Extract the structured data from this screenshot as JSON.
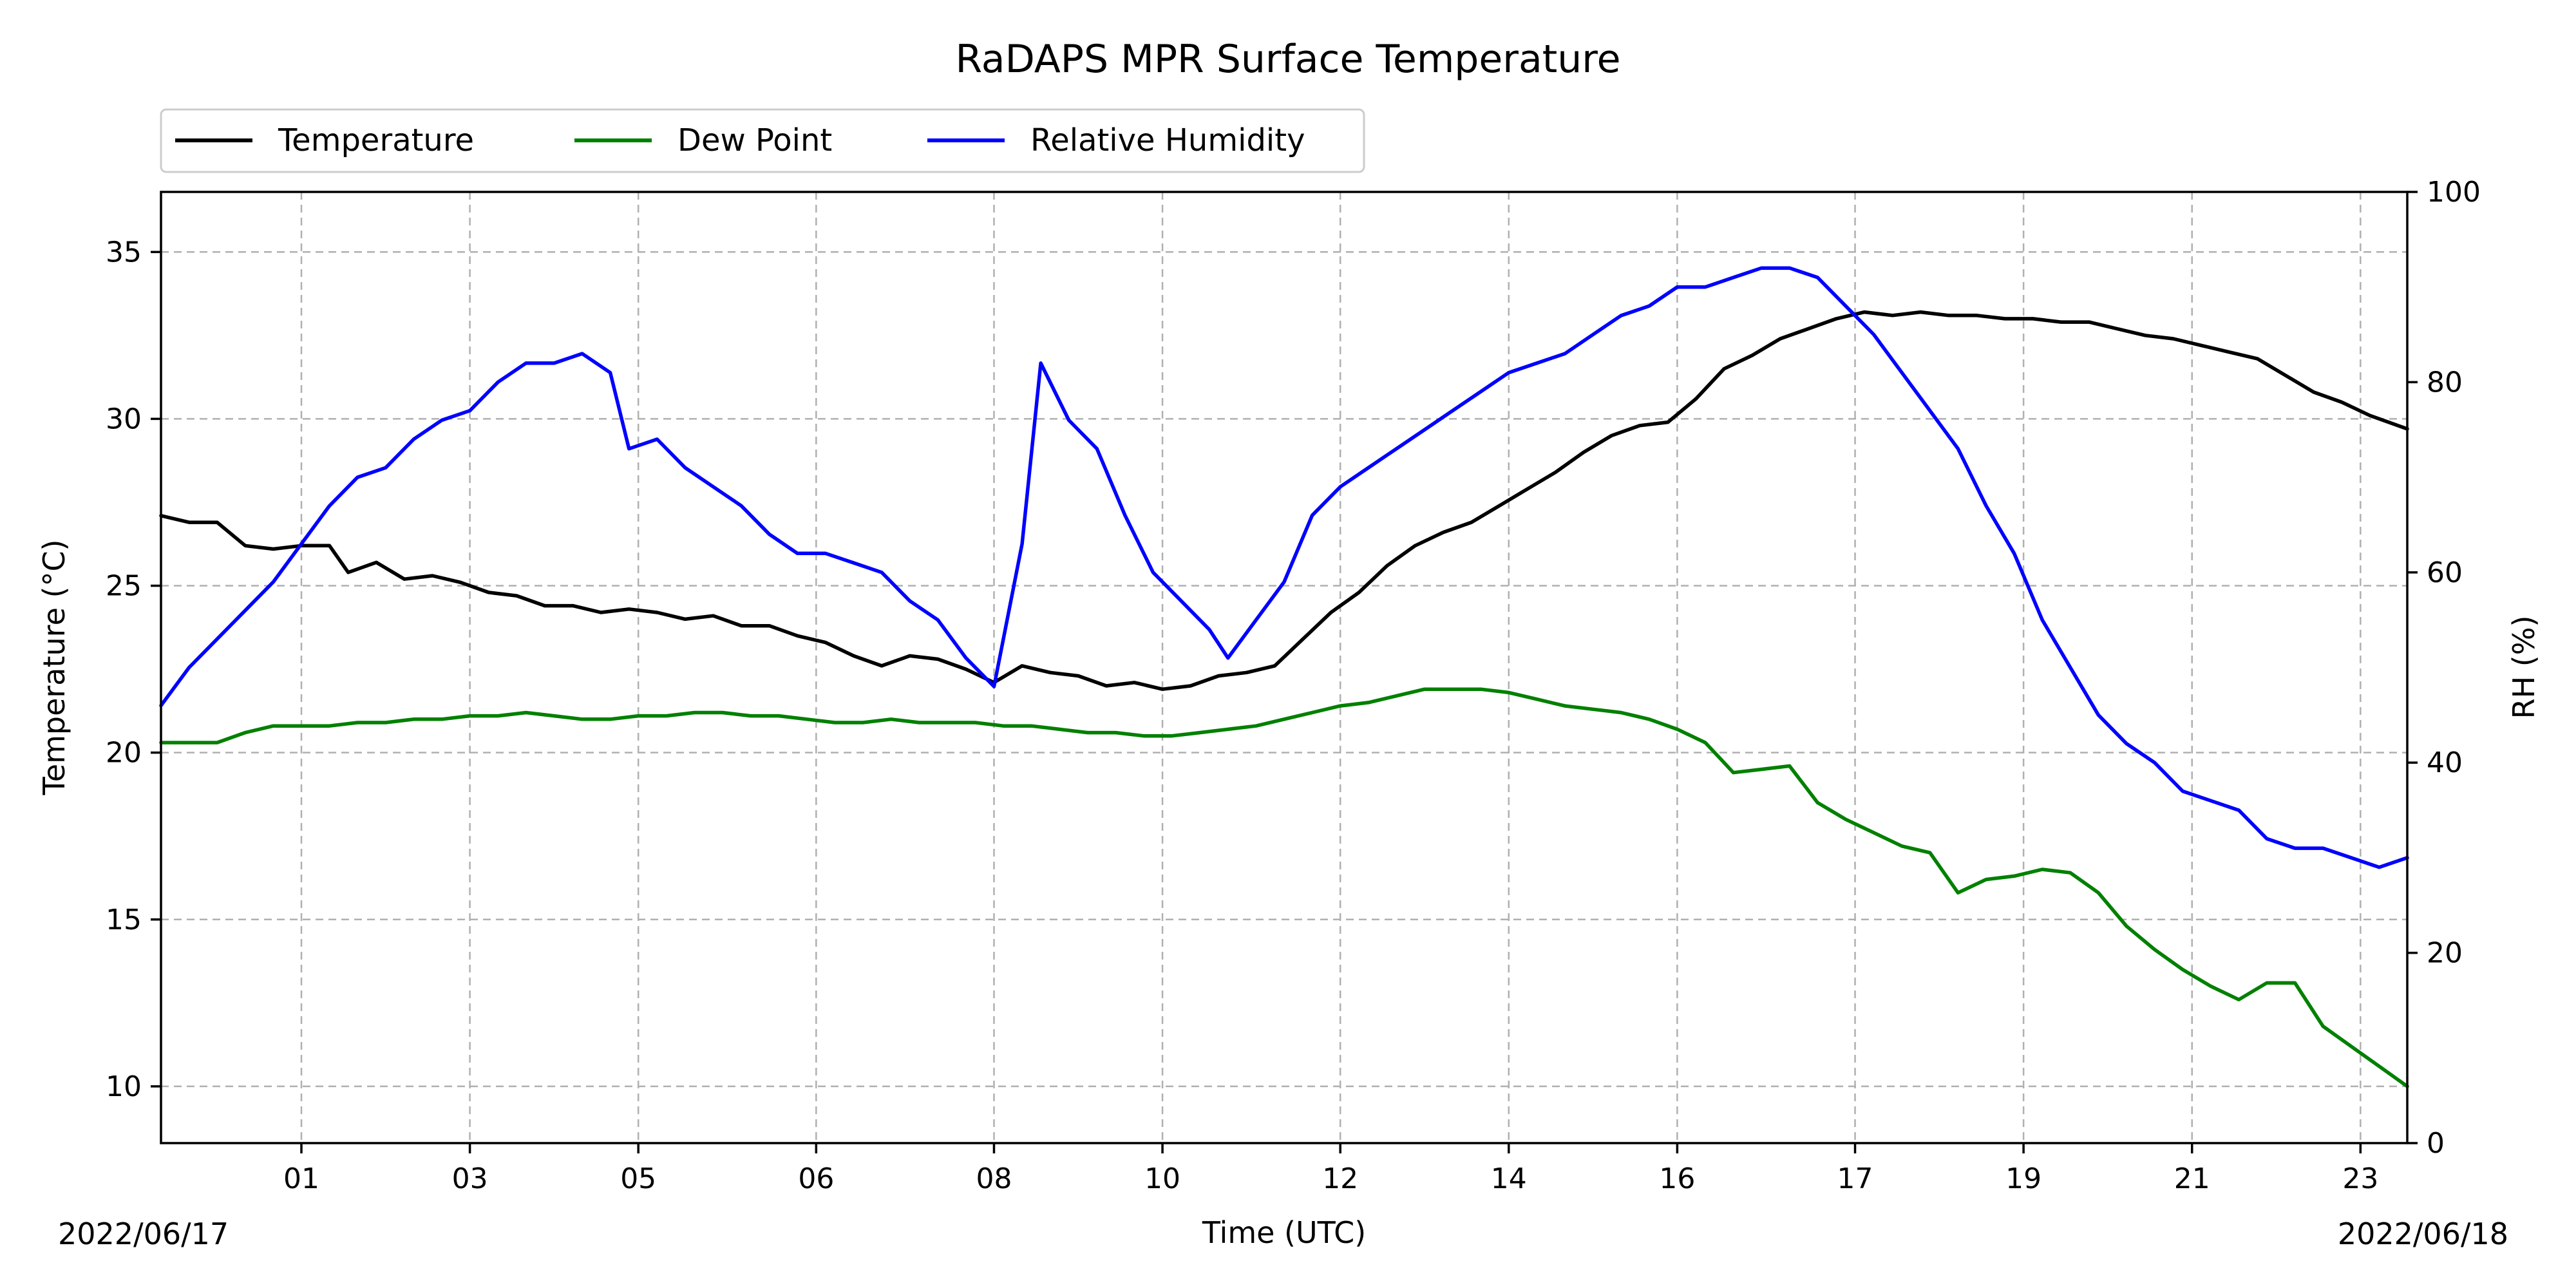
{
  "chart_data": {
    "type": "line",
    "title": "RaDAPS MPR Surface Temperature",
    "xlabel": "Time (UTC)",
    "ylabel_left": "Temperature ($^\\circ$C)",
    "ylabel_left_display": "Temperature (°C)",
    "ylabel_right": "RH (%)",
    "start_date_label": "2022/06/17",
    "end_date_label": "2022/06/18",
    "x_range_hours": [
      0,
      24
    ],
    "ylim_left": [
      8.3,
      36.8
    ],
    "ylim_right": [
      0,
      100
    ],
    "grid": true,
    "legend_position": "top-left, above plot",
    "x_ticks": [
      {
        "hour": 1.5,
        "label": "01"
      },
      {
        "hour": 3.3,
        "label": "03"
      },
      {
        "hour": 5.1,
        "label": "05"
      },
      {
        "hour": 7.0,
        "label": "06"
      },
      {
        "hour": 8.9,
        "label": "08"
      },
      {
        "hour": 10.7,
        "label": "10"
      },
      {
        "hour": 12.6,
        "label": "12"
      },
      {
        "hour": 14.4,
        "label": "14"
      },
      {
        "hour": 16.2,
        "label": "16"
      },
      {
        "hour": 18.1,
        "label": "17"
      },
      {
        "hour": 19.9,
        "label": "19"
      },
      {
        "hour": 21.7,
        "label": "21"
      },
      {
        "hour": 23.5,
        "label": "23"
      }
    ],
    "y_ticks_left": [
      10,
      15,
      20,
      25,
      30,
      35
    ],
    "y_ticks_right": [
      0,
      20,
      40,
      60,
      80,
      100
    ],
    "series": [
      {
        "name": "Temperature",
        "color": "#000000",
        "axis": "left",
        "points": [
          [
            0.0,
            27.1
          ],
          [
            0.3,
            26.9
          ],
          [
            0.6,
            26.9
          ],
          [
            0.9,
            26.2
          ],
          [
            1.2,
            26.1
          ],
          [
            1.5,
            26.2
          ],
          [
            1.8,
            26.2
          ],
          [
            2.0,
            25.4
          ],
          [
            2.3,
            25.7
          ],
          [
            2.6,
            25.2
          ],
          [
            2.9,
            25.3
          ],
          [
            3.2,
            25.1
          ],
          [
            3.5,
            24.8
          ],
          [
            3.8,
            24.7
          ],
          [
            4.1,
            24.4
          ],
          [
            4.4,
            24.4
          ],
          [
            4.7,
            24.2
          ],
          [
            5.0,
            24.3
          ],
          [
            5.3,
            24.2
          ],
          [
            5.6,
            24.0
          ],
          [
            5.9,
            24.1
          ],
          [
            6.2,
            23.8
          ],
          [
            6.5,
            23.8
          ],
          [
            6.8,
            23.5
          ],
          [
            7.1,
            23.3
          ],
          [
            7.4,
            22.9
          ],
          [
            7.7,
            22.6
          ],
          [
            8.0,
            22.9
          ],
          [
            8.3,
            22.8
          ],
          [
            8.6,
            22.5
          ],
          [
            8.9,
            22.1
          ],
          [
            9.2,
            22.6
          ],
          [
            9.5,
            22.4
          ],
          [
            9.8,
            22.3
          ],
          [
            10.1,
            22.0
          ],
          [
            10.4,
            22.1
          ],
          [
            10.7,
            21.9
          ],
          [
            11.0,
            22.0
          ],
          [
            11.3,
            22.3
          ],
          [
            11.6,
            22.4
          ],
          [
            11.9,
            22.6
          ],
          [
            12.2,
            23.4
          ],
          [
            12.5,
            24.2
          ],
          [
            12.8,
            24.8
          ],
          [
            13.1,
            25.6
          ],
          [
            13.4,
            26.2
          ],
          [
            13.7,
            26.6
          ],
          [
            14.0,
            26.9
          ],
          [
            14.3,
            27.4
          ],
          [
            14.6,
            27.9
          ],
          [
            14.9,
            28.4
          ],
          [
            15.2,
            29.0
          ],
          [
            15.5,
            29.5
          ],
          [
            15.8,
            29.8
          ],
          [
            16.1,
            29.9
          ],
          [
            16.4,
            30.6
          ],
          [
            16.7,
            31.5
          ],
          [
            17.0,
            31.9
          ],
          [
            17.3,
            32.4
          ],
          [
            17.6,
            32.7
          ],
          [
            17.9,
            33.0
          ],
          [
            18.2,
            33.2
          ],
          [
            18.5,
            33.1
          ],
          [
            18.8,
            33.2
          ],
          [
            19.1,
            33.1
          ],
          [
            19.4,
            33.1
          ],
          [
            19.7,
            33.0
          ],
          [
            20.0,
            33.0
          ],
          [
            20.3,
            32.9
          ],
          [
            20.6,
            32.9
          ],
          [
            20.9,
            32.7
          ],
          [
            21.2,
            32.5
          ],
          [
            21.5,
            32.4
          ],
          [
            21.8,
            32.2
          ],
          [
            22.1,
            32.0
          ],
          [
            22.4,
            31.8
          ],
          [
            22.7,
            31.3
          ],
          [
            23.0,
            30.8
          ],
          [
            23.3,
            30.5
          ],
          [
            23.6,
            30.1
          ],
          [
            24.0,
            29.7
          ]
        ]
      },
      {
        "name": "Dew Point",
        "color": "#008000",
        "axis": "left",
        "points": [
          [
            0.0,
            20.3
          ],
          [
            0.3,
            20.3
          ],
          [
            0.6,
            20.3
          ],
          [
            0.9,
            20.6
          ],
          [
            1.2,
            20.8
          ],
          [
            1.5,
            20.8
          ],
          [
            1.8,
            20.8
          ],
          [
            2.1,
            20.9
          ],
          [
            2.4,
            20.9
          ],
          [
            2.7,
            21.0
          ],
          [
            3.0,
            21.0
          ],
          [
            3.3,
            21.1
          ],
          [
            3.6,
            21.1
          ],
          [
            3.9,
            21.2
          ],
          [
            4.2,
            21.1
          ],
          [
            4.5,
            21.0
          ],
          [
            4.8,
            21.0
          ],
          [
            5.1,
            21.1
          ],
          [
            5.4,
            21.1
          ],
          [
            5.7,
            21.2
          ],
          [
            6.0,
            21.2
          ],
          [
            6.3,
            21.1
          ],
          [
            6.6,
            21.1
          ],
          [
            6.9,
            21.0
          ],
          [
            7.2,
            20.9
          ],
          [
            7.5,
            20.9
          ],
          [
            7.8,
            21.0
          ],
          [
            8.1,
            20.9
          ],
          [
            8.4,
            20.9
          ],
          [
            8.7,
            20.9
          ],
          [
            9.0,
            20.8
          ],
          [
            9.3,
            20.8
          ],
          [
            9.6,
            20.7
          ],
          [
            9.9,
            20.6
          ],
          [
            10.2,
            20.6
          ],
          [
            10.5,
            20.5
          ],
          [
            10.8,
            20.5
          ],
          [
            11.1,
            20.6
          ],
          [
            11.4,
            20.7
          ],
          [
            11.7,
            20.8
          ],
          [
            12.0,
            21.0
          ],
          [
            12.3,
            21.2
          ],
          [
            12.6,
            21.4
          ],
          [
            12.9,
            21.5
          ],
          [
            13.2,
            21.7
          ],
          [
            13.5,
            21.9
          ],
          [
            13.8,
            21.9
          ],
          [
            14.1,
            21.9
          ],
          [
            14.4,
            21.8
          ],
          [
            14.7,
            21.6
          ],
          [
            15.0,
            21.4
          ],
          [
            15.3,
            21.3
          ],
          [
            15.6,
            21.2
          ],
          [
            15.9,
            21.0
          ],
          [
            16.2,
            20.7
          ],
          [
            16.5,
            20.3
          ],
          [
            16.8,
            19.4
          ],
          [
            17.1,
            19.5
          ],
          [
            17.4,
            19.6
          ],
          [
            17.7,
            18.5
          ],
          [
            18.0,
            18.0
          ],
          [
            18.3,
            17.6
          ],
          [
            18.6,
            17.2
          ],
          [
            18.9,
            17.0
          ],
          [
            19.2,
            15.8
          ],
          [
            19.5,
            16.2
          ],
          [
            19.8,
            16.3
          ],
          [
            20.1,
            16.5
          ],
          [
            20.4,
            16.4
          ],
          [
            20.7,
            15.8
          ],
          [
            21.0,
            14.8
          ],
          [
            21.3,
            14.1
          ],
          [
            21.6,
            13.5
          ],
          [
            21.9,
            13.0
          ],
          [
            22.2,
            12.6
          ],
          [
            22.5,
            13.1
          ],
          [
            22.8,
            13.1
          ],
          [
            23.1,
            11.8
          ],
          [
            23.4,
            11.2
          ],
          [
            23.7,
            10.6
          ],
          [
            24.0,
            10.0
          ]
        ]
      },
      {
        "name": "Relative Humidity",
        "color": "#0000ff",
        "axis": "right",
        "points": [
          [
            0.0,
            46
          ],
          [
            0.3,
            50
          ],
          [
            0.6,
            53
          ],
          [
            0.9,
            56
          ],
          [
            1.2,
            59
          ],
          [
            1.5,
            63
          ],
          [
            1.8,
            67
          ],
          [
            2.1,
            70
          ],
          [
            2.4,
            71
          ],
          [
            2.7,
            74
          ],
          [
            3.0,
            76
          ],
          [
            3.3,
            77
          ],
          [
            3.6,
            80
          ],
          [
            3.9,
            82
          ],
          [
            4.2,
            82
          ],
          [
            4.5,
            83
          ],
          [
            4.8,
            81
          ],
          [
            5.0,
            73
          ],
          [
            5.3,
            74
          ],
          [
            5.6,
            71
          ],
          [
            5.9,
            69
          ],
          [
            6.2,
            67
          ],
          [
            6.5,
            64
          ],
          [
            6.8,
            62
          ],
          [
            7.1,
            62
          ],
          [
            7.4,
            61
          ],
          [
            7.7,
            60
          ],
          [
            8.0,
            57
          ],
          [
            8.3,
            55
          ],
          [
            8.6,
            51
          ],
          [
            8.9,
            48
          ],
          [
            9.2,
            63
          ],
          [
            9.4,
            82
          ],
          [
            9.7,
            76
          ],
          [
            10.0,
            73
          ],
          [
            10.3,
            66
          ],
          [
            10.6,
            60
          ],
          [
            10.9,
            57
          ],
          [
            11.2,
            54
          ],
          [
            11.4,
            51
          ],
          [
            11.7,
            55
          ],
          [
            12.0,
            59
          ],
          [
            12.3,
            66
          ],
          [
            12.6,
            69
          ],
          [
            12.9,
            71
          ],
          [
            13.2,
            73
          ],
          [
            13.5,
            75
          ],
          [
            13.8,
            77
          ],
          [
            14.1,
            79
          ],
          [
            14.4,
            81
          ],
          [
            14.7,
            82
          ],
          [
            15.0,
            83
          ],
          [
            15.3,
            85
          ],
          [
            15.6,
            87
          ],
          [
            15.9,
            88
          ],
          [
            16.2,
            90
          ],
          [
            16.5,
            90
          ],
          [
            16.8,
            91
          ],
          [
            17.1,
            92
          ],
          [
            17.4,
            92
          ],
          [
            17.7,
            91
          ],
          [
            18.0,
            88
          ],
          [
            18.3,
            85
          ],
          [
            18.6,
            81
          ],
          [
            18.9,
            77
          ],
          [
            19.2,
            73
          ],
          [
            19.5,
            67
          ],
          [
            19.8,
            62
          ],
          [
            20.1,
            55
          ],
          [
            20.4,
            50
          ],
          [
            20.7,
            45
          ],
          [
            21.0,
            42
          ],
          [
            21.3,
            40
          ],
          [
            21.6,
            37
          ],
          [
            21.9,
            36
          ],
          [
            22.2,
            35
          ],
          [
            22.5,
            32
          ],
          [
            22.8,
            31
          ],
          [
            23.1,
            31
          ],
          [
            23.4,
            30
          ],
          [
            23.7,
            29
          ],
          [
            24.0,
            30
          ]
        ]
      }
    ]
  }
}
